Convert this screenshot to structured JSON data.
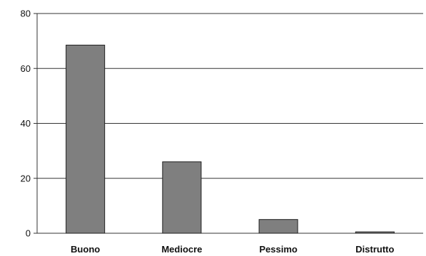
{
  "chart_data": {
    "type": "bar",
    "title": "",
    "xlabel": "",
    "ylabel": "",
    "categories": [
      "Buono",
      "Mediocre",
      "Pessimo",
      "Distrutto"
    ],
    "values": [
      68.5,
      26,
      5,
      0.5
    ],
    "ylim": [
      0,
      80
    ],
    "yticks": [
      "0",
      "20",
      "40",
      "60",
      "80"
    ],
    "grid": true,
    "legend": "none",
    "colors": {
      "bar_fill": "#7f7f7f",
      "bar_stroke": "#1f1f1f",
      "gridline": "#333333",
      "axis": "#333333"
    }
  }
}
